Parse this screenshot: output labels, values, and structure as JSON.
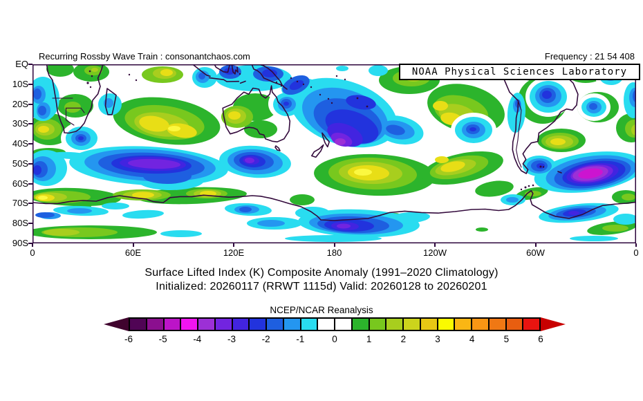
{
  "header": {
    "left_text": "Recurring Rossby Wave Train : consonantchaos.com",
    "right_text": "Frequency : 21 54 408",
    "noaa_box": "NOAA Physical Sciences Laboratory"
  },
  "titles": {
    "line1": "Surface Lifted Index (K) Composite Anomaly (1991–2020 Climatology)",
    "line2": "Initialized: 20260117 (RRWT 1115d) Valid: 20260128 to 20260201"
  },
  "map": {
    "y_axis_labels": [
      "EQ",
      "10S",
      "20S",
      "30S",
      "40S",
      "50S",
      "60S",
      "70S",
      "80S",
      "90S"
    ],
    "x_axis_labels": [
      "0",
      "60E",
      "120E",
      "180",
      "120W",
      "60W",
      "0"
    ],
    "frame_color": "#2d063c",
    "coastline_color": "#330a3c"
  },
  "colorbar": {
    "label": "NCEP/NCAR Reanalysis",
    "tick_labels": [
      "-6",
      "-5",
      "-4",
      "-3",
      "-2",
      "-1",
      "0",
      "1",
      "2",
      "3",
      "4",
      "5",
      "6"
    ],
    "left_arrow_color": "#40042e",
    "right_arrow_color": "#c80000",
    "cell_edges": [
      -6,
      -5.5,
      -5,
      -4.5,
      -4,
      -3.5,
      -3,
      -2.5,
      -2,
      -1.5,
      -1,
      -0.5,
      0,
      0.5,
      1,
      1.5,
      2,
      2.5,
      3,
      3.5,
      4,
      4.5,
      5,
      5.5,
      6
    ],
    "cell_colors": [
      "#500455",
      "#8b0f8f",
      "#bc14c8",
      "#f014f0",
      "#9c30d6",
      "#7224e0",
      "#4224e0",
      "#2233dd",
      "#1e5fe0",
      "#2496f0",
      "#29dcf0",
      "#ffffff",
      "#ffffff",
      "#2cb42c",
      "#78c81e",
      "#a8ce1e",
      "#ccd41c",
      "#e8c814",
      "#fafa00",
      "#fab614",
      "#fa9614",
      "#f07814",
      "#e85e10",
      "#e81410"
    ]
  },
  "chart_data": {
    "type": "heatmap",
    "title": "Surface Lifted Index (K) Composite Anomaly (1991–2020 Climatology)",
    "subtitle": "Initialized: 20260117 (RRWT 1115d) Valid: 20260128 to 20260201",
    "source": "NCEP/NCAR Reanalysis",
    "units": "K",
    "projection": "cylindrical equidistant",
    "lon_range_deg_east": [
      0,
      360
    ],
    "lat_range": [
      "EQ",
      "90S"
    ],
    "contour_interval": 0.5,
    "contour_levels": [
      -6,
      -5.5,
      -5,
      -4.5,
      -4,
      -3.5,
      -3,
      -2.5,
      -2,
      -1.5,
      -1,
      -0.5,
      0,
      0.5,
      1,
      1.5,
      2,
      2.5,
      3,
      3.5,
      4,
      4.5,
      5,
      5.5,
      6
    ],
    "anomaly_centers": [
      {
        "lon_e": 8,
        "lat": -33,
        "value": 3,
        "note": "yellow max, SE Atlantic off SW Africa"
      },
      {
        "lon_e": 80,
        "lat": -5,
        "value": 2.5,
        "note": "yellow-green, equatorial Indian Ocean"
      },
      {
        "lon_e": 83,
        "lat": -33,
        "value": 3.5,
        "note": "bright yellow core, central Indian Ocean"
      },
      {
        "lon_e": 100,
        "lat": -7,
        "value": -1.5,
        "note": "light blue off Sumatra"
      },
      {
        "lon_e": 117,
        "lat": -4,
        "value": -2.5,
        "note": "blue over Indonesia"
      },
      {
        "lon_e": 141,
        "lat": -5,
        "value": -2.5,
        "note": "blue over New Guinea"
      },
      {
        "lon_e": 122,
        "lat": -27,
        "value": 3,
        "note": "yellow over western Australia"
      },
      {
        "lon_e": 151,
        "lat": -21,
        "value": -2.5,
        "note": "navy blob, Coral Sea / E Australia"
      },
      {
        "lon_e": 184,
        "lat": -38,
        "value": -4,
        "note": "purple-violet minimum SE of New Zealand"
      },
      {
        "lon_e": 217,
        "lat": -33,
        "value": -2,
        "note": "blue lobe, South Pacific"
      },
      {
        "lon_e": 227,
        "lat": -7,
        "value": 1.5,
        "note": "green, equatorial central Pacific"
      },
      {
        "lon_e": 250,
        "lat": -31,
        "value": 3,
        "value_note": "+3",
        "note": "yellow, east South Pacific"
      },
      {
        "lon_e": 263,
        "lat": -33,
        "value": -2,
        "note": "blue spot, SE Pacific"
      },
      {
        "lon_e": 308,
        "lat": -17,
        "value": -2.5,
        "note": "navy blob over eastern Brazil"
      },
      {
        "lon_e": 307,
        "lat": -39,
        "value": 3,
        "note": "yellow over Argentina / SW Atlantic"
      },
      {
        "lon_e": 335,
        "lat": -23,
        "value": -2,
        "note": "blue spot, tropical South Atlantic"
      },
      {
        "lon_e": 73,
        "lat": -49,
        "value": -3.5,
        "note": "elongated violet minimum, southern Indian Ocean"
      },
      {
        "lon_e": 130,
        "lat": -48,
        "value": -3.5,
        "note": "violet minimum south of Australia"
      },
      {
        "lon_e": 197,
        "lat": -54,
        "value": 3.5,
        "note": "bright yellow max, southern Pacific"
      },
      {
        "lon_e": 250,
        "lat": -51,
        "value": 3,
        "note": "yellow band, SE Pacific ~55S"
      },
      {
        "lon_e": 333,
        "lat": -55,
        "value": -4.5,
        "note": "magenta minimum, South Atlantic"
      },
      {
        "lon_e": 7,
        "lat": -67,
        "value": 3.5,
        "note": "bright yellow on Antarctic coast 0-20E"
      },
      {
        "lon_e": 66,
        "lat": -65,
        "value": 2.5,
        "note": "yellow, Antarctic coast ~65E"
      },
      {
        "lon_e": 105,
        "lat": -65,
        "value": 2.5,
        "note": "yellow, Antarctic coast ~105E"
      },
      {
        "lon_e": 188,
        "lat": -80,
        "value": -3.5,
        "note": "indigo minimum, Ross Sea"
      },
      {
        "lon_e": 325,
        "lat": -75,
        "value": -2.5,
        "note": "navy band, Weddell Sea coast"
      },
      {
        "lon_e": 30,
        "lat": -37,
        "value": -2.5,
        "note": "navy spot south of South Africa"
      },
      {
        "lon_e": 25,
        "lat": -85,
        "value": 2,
        "note": "green-yellow band near pole, 0-60E"
      }
    ],
    "legend_position": "bottom",
    "grid": false
  }
}
